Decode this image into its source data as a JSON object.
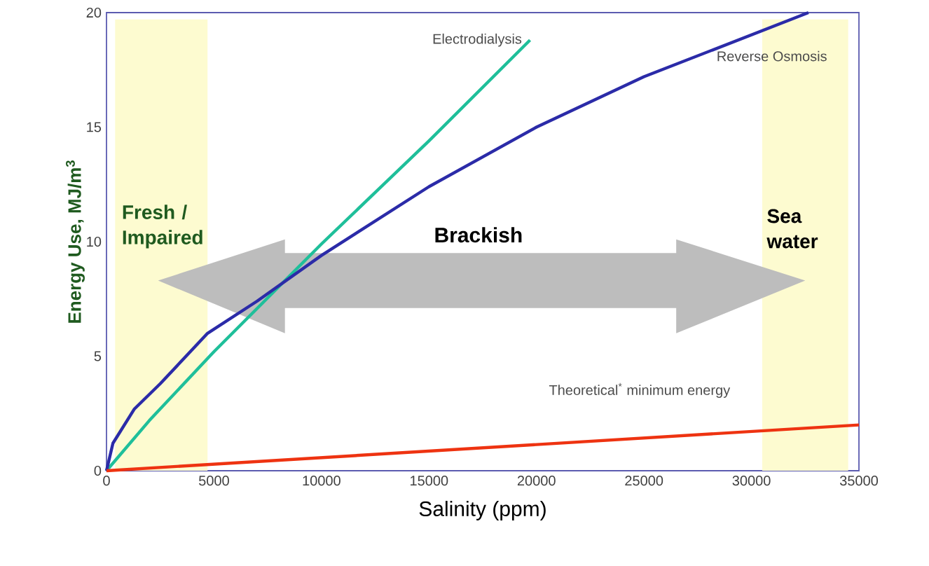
{
  "chart_data": {
    "type": "line",
    "xlabel": "Salinity (ppm)",
    "ylabel": "Energy Use, MJ/m$^{3}$",
    "xlim": [
      0,
      35000
    ],
    "ylim": [
      0,
      20
    ],
    "xticks": [
      0,
      5000,
      10000,
      15000,
      20000,
      25000,
      30000,
      35000
    ],
    "yticks": [
      0,
      5,
      10,
      15,
      20
    ],
    "grid": false,
    "legend": false,
    "marker": "none",
    "line_style": "solid",
    "series": [
      {
        "name": "Electrodialysis",
        "color": "#1fbf9a",
        "x": [
          0,
          2000,
          5000,
          10000,
          15000,
          19700
        ],
        "values": [
          0,
          2.2,
          5.2,
          9.9,
          14.4,
          18.8
        ]
      },
      {
        "name": "Reverse Osmosis",
        "color": "#2b2ba8",
        "x": [
          0,
          300,
          1300,
          2500,
          4700,
          7000,
          10000,
          15000,
          20000,
          25000,
          32650
        ],
        "values": [
          0,
          1.2,
          2.7,
          3.8,
          6.0,
          7.4,
          9.4,
          12.4,
          15.0,
          17.2,
          20
        ]
      },
      {
        "name": "Theoretical$^{*}$ minimum energy",
        "color": "#ee3311",
        "x": [
          0,
          35000
        ],
        "values": [
          0,
          2.0
        ]
      }
    ],
    "bands": [
      {
        "axis": "x",
        "from": 400,
        "to": 4700,
        "label": "Fresh / Impaired",
        "color": "#fdfbd0"
      },
      {
        "axis": "x",
        "from": 30500,
        "to": 34500,
        "label": "Sea water",
        "color": "#fdfbd0"
      }
    ],
    "annotations": [
      "Brackish"
    ]
  }
}
